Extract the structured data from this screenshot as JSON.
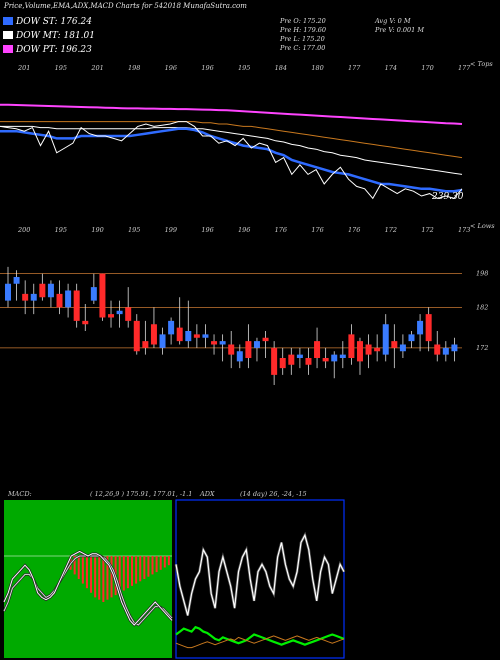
{
  "title": "Price,Volume,EMA,ADX,MACD Charts for 542018 MunafaSutra.com",
  "legend": [
    {
      "label": "DOW ST: 176.24",
      "color": "#2f6bff"
    },
    {
      "label": "DOW MT: 181.01",
      "color": "#ffffff"
    },
    {
      "label": "DOW PT: 196.23",
      "color": "#ff44ff"
    }
  ],
  "ohlc_left": [
    "Pre  O: 175.20",
    "Pre  H: 179.60",
    "Pre  L: 175.20",
    "Pre  C: 177.00"
  ],
  "ohlc_right": [
    "Avg V: 0  M",
    "Pre  V: 0.001 M"
  ],
  "panel1_tag": "< Tops",
  "panel2_tag": "< Lows",
  "last_value_label": "239.30",
  "macd_label": "MACD:",
  "macd_values": "( 12,26,9 ) 175.91, 177.01, -1.1",
  "adx_label": "ADX",
  "adx_values": "(14  day) 26,  -24,  -15",
  "colors": {
    "ema_short": "#2f6bff",
    "ema_mid": "#ffffff",
    "ema_long": "#ff44ff",
    "ema_orange": "#c8781e",
    "up": "#3a7bff",
    "down": "#ff2a2a",
    "macd_bg": "#00aa00",
    "sr_line": "#c87832"
  },
  "chart_data": [
    {
      "type": "line",
      "name": "price-ema-panel",
      "top_labels": [
        "201",
        "195",
        "201",
        "198",
        "196",
        "196",
        "195",
        "184",
        "180",
        "177",
        "174",
        "170",
        "177"
      ],
      "series": [
        {
          "name": "",
          "color": "#ffffff",
          "values": [
            184,
            183.5,
            183,
            182,
            183.5,
            176,
            182,
            173,
            175,
            177,
            183.5,
            181,
            180,
            180,
            179,
            178,
            181,
            184,
            185,
            184,
            184.5,
            185,
            186,
            186,
            184,
            180,
            180,
            177,
            178,
            176,
            179,
            175,
            177,
            176,
            169,
            171,
            164,
            168,
            164,
            166,
            160,
            164,
            167,
            162,
            159,
            158,
            154,
            160,
            158,
            156,
            158,
            157,
            155,
            156,
            154,
            155,
            154,
            158
          ]
        },
        {
          "name": "DOW ST",
          "color": "#2f6bff",
          "values": [
            182,
            182,
            182,
            181.5,
            181,
            180.5,
            180,
            179,
            179,
            179,
            180,
            180,
            180,
            180,
            180,
            180,
            180,
            180.5,
            181,
            181.5,
            182,
            182.5,
            183,
            183,
            182.5,
            181.5,
            180,
            179,
            178,
            177,
            176,
            175.5,
            175,
            174.5,
            173,
            172,
            170,
            169,
            168,
            167,
            166,
            165,
            164.5,
            164,
            163,
            162,
            161,
            160,
            160,
            159.5,
            159,
            158.5,
            158,
            158,
            157.5,
            157,
            157,
            157.5
          ]
        },
        {
          "name": "DOW MT",
          "color": "#ffffff",
          "values": [
            184,
            184,
            184,
            184,
            184,
            183.5,
            183.5,
            183,
            183,
            183,
            183,
            183,
            183,
            183,
            183,
            183,
            183,
            183,
            183,
            183.5,
            183.5,
            183.5,
            183.5,
            183.5,
            183,
            183,
            182.5,
            182,
            181.5,
            181,
            180.5,
            180,
            179.5,
            179,
            178,
            177.5,
            176.5,
            176,
            175,
            174.5,
            173.5,
            173,
            172,
            171.5,
            171,
            170,
            169.5,
            169,
            168.5,
            168,
            167.5,
            167,
            166.5,
            166,
            165.5,
            165,
            164.5,
            164
          ]
        },
        {
          "name": "",
          "color": "#c8781e",
          "values": [
            186,
            186,
            186,
            186,
            186,
            186,
            186,
            186,
            186,
            186,
            186,
            186,
            186,
            186,
            186,
            186,
            186,
            186,
            186,
            186,
            186,
            186,
            186,
            186,
            186,
            185.5,
            185.5,
            185,
            185,
            184.5,
            184,
            184,
            183.5,
            183,
            182.5,
            182,
            181.5,
            181,
            180.5,
            180,
            179.5,
            179,
            178.5,
            178,
            177.5,
            177,
            176.5,
            176,
            175.5,
            175,
            174.5,
            174,
            173.5,
            173,
            172.5,
            172,
            171.5,
            171
          ]
        },
        {
          "name": "DOW PT",
          "color": "#ff44ff",
          "values": [
            193,
            193,
            192.9,
            192.8,
            192.7,
            192.6,
            192.5,
            192.4,
            192.3,
            192.2,
            192.1,
            192,
            191.9,
            191.8,
            191.7,
            191.6,
            191.5,
            191.5,
            191.4,
            191.4,
            191.3,
            191.3,
            191.2,
            191.2,
            191.1,
            191,
            190.9,
            190.8,
            190.7,
            190.5,
            190.3,
            190.1,
            189.9,
            189.7,
            189.5,
            189.3,
            189.1,
            188.9,
            188.7,
            188.5,
            188.3,
            188.1,
            187.9,
            187.7,
            187.5,
            187.3,
            187.1,
            186.9,
            186.7,
            186.5,
            186.3,
            186.1,
            185.9,
            185.7,
            185.5,
            185.3,
            185.2,
            185
          ]
        }
      ],
      "ylim": [
        150,
        200
      ]
    },
    {
      "type": "candlestick",
      "name": "candle-panel",
      "top_labels": [
        "200",
        "195",
        "190",
        "195",
        "199",
        "196",
        "196",
        "176",
        "176",
        "176",
        "172",
        "172",
        "173"
      ],
      "right_labels": [
        "198",
        "182",
        "172"
      ],
      "support_resistance": [
        198,
        188,
        176
      ],
      "candles": [
        {
          "o": 190,
          "h": 200,
          "l": 188,
          "c": 195
        },
        {
          "o": 195,
          "h": 199,
          "l": 190,
          "c": 197
        },
        {
          "o": 192,
          "h": 196,
          "l": 186,
          "c": 190
        },
        {
          "o": 190,
          "h": 195,
          "l": 186,
          "c": 192
        },
        {
          "o": 195,
          "h": 198,
          "l": 190,
          "c": 191
        },
        {
          "o": 191,
          "h": 196,
          "l": 188,
          "c": 195
        },
        {
          "o": 192,
          "h": 196,
          "l": 186,
          "c": 188
        },
        {
          "o": 188,
          "h": 195,
          "l": 185,
          "c": 193
        },
        {
          "o": 193,
          "h": 195,
          "l": 182,
          "c": 184
        },
        {
          "o": 184,
          "h": 189,
          "l": 181,
          "c": 183
        },
        {
          "o": 190,
          "h": 198,
          "l": 189,
          "c": 194
        },
        {
          "o": 198,
          "h": 198,
          "l": 184,
          "c": 185
        },
        {
          "o": 186,
          "h": 190,
          "l": 182,
          "c": 185
        },
        {
          "o": 186,
          "h": 190,
          "l": 182,
          "c": 187
        },
        {
          "o": 188,
          "h": 194,
          "l": 182,
          "c": 184
        },
        {
          "o": 184,
          "h": 186,
          "l": 174,
          "c": 175
        },
        {
          "o": 178,
          "h": 184,
          "l": 174,
          "c": 176
        },
        {
          "o": 183,
          "h": 188,
          "l": 176,
          "c": 177
        },
        {
          "o": 176,
          "h": 182,
          "l": 174,
          "c": 180
        },
        {
          "o": 180,
          "h": 185,
          "l": 177,
          "c": 184
        },
        {
          "o": 182,
          "h": 191,
          "l": 177,
          "c": 178
        },
        {
          "o": 178,
          "h": 190,
          "l": 176,
          "c": 181
        },
        {
          "o": 180,
          "h": 183,
          "l": 176,
          "c": 179
        },
        {
          "o": 179,
          "h": 183,
          "l": 176,
          "c": 180
        },
        {
          "o": 178,
          "h": 180,
          "l": 174,
          "c": 177
        },
        {
          "o": 177,
          "h": 180,
          "l": 172,
          "c": 178
        },
        {
          "o": 177,
          "h": 181,
          "l": 170,
          "c": 174
        },
        {
          "o": 172,
          "h": 177,
          "l": 170,
          "c": 175
        },
        {
          "o": 178,
          "h": 183,
          "l": 170,
          "c": 173
        },
        {
          "o": 176,
          "h": 179,
          "l": 172,
          "c": 178
        },
        {
          "o": 179,
          "h": 181,
          "l": 173,
          "c": 178
        },
        {
          "o": 176,
          "h": 178,
          "l": 165,
          "c": 168
        },
        {
          "o": 173,
          "h": 176,
          "l": 168,
          "c": 170
        },
        {
          "o": 174,
          "h": 176,
          "l": 168,
          "c": 171
        },
        {
          "o": 173,
          "h": 176,
          "l": 170,
          "c": 174
        },
        {
          "o": 173,
          "h": 176,
          "l": 168,
          "c": 171
        },
        {
          "o": 178,
          "h": 182,
          "l": 170,
          "c": 173
        },
        {
          "o": 173,
          "h": 176,
          "l": 170,
          "c": 172
        },
        {
          "o": 172,
          "h": 175,
          "l": 167,
          "c": 174
        },
        {
          "o": 173,
          "h": 178,
          "l": 170,
          "c": 174
        },
        {
          "o": 180,
          "h": 183,
          "l": 171,
          "c": 173
        },
        {
          "o": 178,
          "h": 179,
          "l": 168,
          "c": 172
        },
        {
          "o": 177,
          "h": 180,
          "l": 170,
          "c": 174
        },
        {
          "o": 176,
          "h": 180,
          "l": 172,
          "c": 175
        },
        {
          "o": 174,
          "h": 186,
          "l": 172,
          "c": 183
        },
        {
          "o": 178,
          "h": 183,
          "l": 170,
          "c": 176
        },
        {
          "o": 175,
          "h": 180,
          "l": 173,
          "c": 177
        },
        {
          "o": 178,
          "h": 181,
          "l": 176,
          "c": 180
        },
        {
          "o": 180,
          "h": 186,
          "l": 175,
          "c": 184
        },
        {
          "o": 186,
          "h": 188,
          "l": 175,
          "c": 178
        },
        {
          "o": 177,
          "h": 181,
          "l": 172,
          "c": 174
        },
        {
          "o": 174,
          "h": 178,
          "l": 172,
          "c": 176
        },
        {
          "o": 175,
          "h": 179,
          "l": 172,
          "c": 177
        }
      ],
      "ylim": [
        165,
        205
      ]
    },
    {
      "type": "bar",
      "name": "macd-panel",
      "histogram": [
        0,
        0,
        0,
        0,
        0,
        0,
        0,
        0,
        0,
        0,
        0,
        0,
        0,
        0,
        0,
        0,
        -3,
        -4,
        -5,
        -6,
        -7,
        -8,
        -9,
        -9.5,
        -10,
        -9.5,
        -9,
        -8.5,
        -8,
        -7.5,
        -7,
        -6.5,
        -6,
        -5.5,
        -5,
        -4.5,
        -4,
        -3.5,
        -3,
        -2.5,
        -2
      ],
      "macd_line": [
        -10,
        -8,
        -5,
        -4,
        -3,
        -2,
        -3,
        -5,
        -8,
        -9,
        -9.5,
        -9,
        -8,
        -6,
        -4,
        -2,
        0,
        0.5,
        1,
        0.5,
        0,
        0.5,
        0.5,
        0,
        -1,
        -2,
        -4,
        -7,
        -10,
        -12,
        -14,
        -15,
        -14,
        -13,
        -12,
        -11,
        -10,
        -11,
        -12,
        -13,
        -14
      ],
      "signal_line": [
        -12,
        -10,
        -7,
        -6,
        -5,
        -4,
        -4,
        -5,
        -7,
        -8,
        -9,
        -8.5,
        -7.5,
        -6,
        -4.5,
        -3,
        -1.5,
        -0.5,
        0,
        0,
        0,
        0,
        0,
        0,
        -0.5,
        -1.5,
        -3,
        -5.5,
        -8.5,
        -11,
        -13,
        -14.5,
        -15,
        -14,
        -13,
        -12,
        -11,
        -11,
        -11.5,
        -12.5,
        -13.5
      ],
      "ylim": [
        -20,
        10
      ]
    },
    {
      "type": "line",
      "name": "adx-panel",
      "series": [
        {
          "name": "",
          "color": "#ffffff",
          "values": [
            60,
            45,
            35,
            25,
            40,
            50,
            55,
            70,
            65,
            40,
            30,
            55,
            65,
            55,
            45,
            30,
            55,
            65,
            70,
            50,
            35,
            55,
            60,
            55,
            45,
            40,
            65,
            75,
            60,
            50,
            45,
            55,
            75,
            80,
            70,
            50,
            35,
            55,
            65,
            60,
            40,
            50,
            60,
            55
          ]
        },
        {
          "name": "",
          "color": "#00ee00",
          "values": [
            12,
            14,
            16,
            15,
            14,
            17,
            16,
            14,
            13,
            11,
            9,
            8,
            10,
            9,
            8,
            7,
            6,
            7,
            8,
            10,
            12,
            11,
            10,
            9,
            8,
            7,
            6,
            5,
            6,
            7,
            8,
            7,
            6,
            5,
            6,
            7,
            8,
            9,
            10,
            11,
            12,
            11,
            10,
            9
          ]
        },
        {
          "name": "",
          "color": "#c8781e",
          "values": [
            6,
            5,
            4,
            3,
            3,
            4,
            5,
            6,
            7,
            6,
            5,
            6,
            7,
            8,
            9,
            8,
            10,
            9,
            8,
            7,
            6,
            7,
            8,
            9,
            10,
            11,
            10,
            9,
            8,
            9,
            10,
            11,
            10,
            9,
            8,
            9,
            10,
            9,
            8,
            7,
            6,
            7,
            8,
            9
          ]
        }
      ],
      "ylim": [
        0,
        100
      ]
    }
  ]
}
